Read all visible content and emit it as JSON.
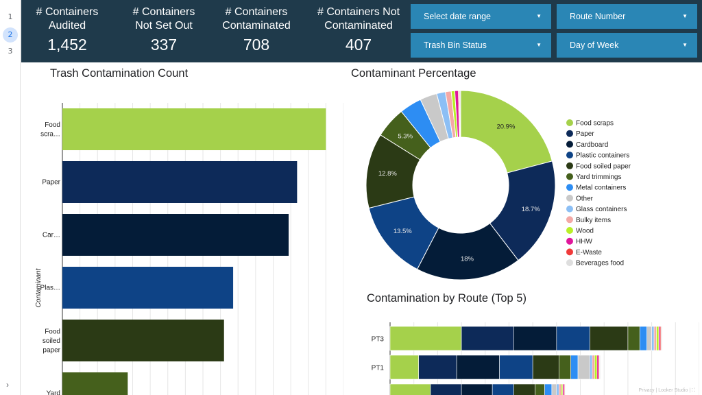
{
  "page_nav": {
    "pages": [
      "1",
      "2",
      "3"
    ],
    "active": "2",
    "expand_icon": "›"
  },
  "kpis": [
    {
      "label_line1": "# Containers",
      "label_line2": "Audited",
      "value": "1,452"
    },
    {
      "label_line1": "# Containers",
      "label_line2": "Not Set Out",
      "value": "337"
    },
    {
      "label_line1": "# Containers",
      "label_line2": "Contaminated",
      "value": "708"
    },
    {
      "label_line1": "# Containers Not",
      "label_line2": "Contaminated",
      "value": "407"
    }
  ],
  "filters": {
    "date_range": "Select date range",
    "route_number": "Route Number",
    "trash_bin_status": "Trash Bin Status",
    "day_of_week": "Day of Week"
  },
  "titles": {
    "bar": "Trash Contamination Count",
    "donut": "Contaminant Percentage",
    "route": "Contamination by Route (Top 5)"
  },
  "footer": "Privacy | Looker Studio | ⛶",
  "colors": {
    "Food scraps": "#a5d14b",
    "Paper": "#0d2a59",
    "Cardboard": "#041c38",
    "Plastic containers": "#0e4386",
    "Food soiled paper": "#2b3a15",
    "Yard trimmings": "#45601c",
    "Metal containers": "#2d8df3",
    "Other": "#c9c9c9",
    "Glass containers": "#8cbff5",
    "Bulky items": "#f4a9a6",
    "Wood": "#b9ef27",
    "HHW": "#e0169b",
    "E-Waste": "#f03a3a",
    "Beverages food": "#dedede"
  },
  "chart_data": [
    {
      "type": "bar",
      "orientation": "horizontal",
      "title": "Trash Contamination Count",
      "ylabel": "Contaminant",
      "categories": [
        "Food scraps",
        "Paper",
        "Cardboard",
        "Plastic containers",
        "Food soiled paper",
        "Yard trimmings"
      ],
      "tick_labels": [
        "Food scra…",
        "Paper",
        "Car…",
        "Plas…",
        "Food soiled paper",
        "Yard"
      ],
      "values": [
        375,
        334,
        322,
        243,
        230,
        93
      ],
      "xlim": [
        0,
        400
      ]
    },
    {
      "type": "pie",
      "title": "Contaminant Percentage",
      "donut": true,
      "labels": [
        "Food scraps",
        "Paper",
        "Cardboard",
        "Plastic containers",
        "Food soiled paper",
        "Yard trimmings",
        "Metal containers",
        "Other",
        "Glass containers",
        "Bulky items",
        "Wood",
        "HHW",
        "E-Waste",
        "Beverages food"
      ],
      "values": [
        20.9,
        18.7,
        18.0,
        13.5,
        12.8,
        5.3,
        3.8,
        2.9,
        1.5,
        1.0,
        0.6,
        0.6,
        0.2,
        0.2
      ],
      "data_labels": [
        "20.9%",
        "18.7%",
        "18%",
        "13.5%",
        "12.8%",
        "5.3%",
        "",
        "",
        "",
        "",
        "",
        "",
        "",
        ""
      ]
    },
    {
      "type": "bar",
      "stacked": true,
      "orientation": "horizontal",
      "title": "Contamination by Route (Top 5)",
      "categories": [
        "PT3",
        "PT1",
        ""
      ],
      "series": [
        {
          "name": "Food scraps",
          "values": [
            30,
            12,
            17
          ]
        },
        {
          "name": "Paper",
          "values": [
            22,
            16,
            13
          ]
        },
        {
          "name": "Cardboard",
          "values": [
            18,
            18,
            13
          ]
        },
        {
          "name": "Plastic containers",
          "values": [
            14,
            14,
            9
          ]
        },
        {
          "name": "Food soiled paper",
          "values": [
            16,
            11,
            9
          ]
        },
        {
          "name": "Yard trimmings",
          "values": [
            5,
            5,
            4
          ]
        },
        {
          "name": "Metal containers",
          "values": [
            3,
            3,
            3
          ]
        },
        {
          "name": "Other",
          "values": [
            2,
            5,
            2
          ]
        },
        {
          "name": "Glass containers",
          "values": [
            1,
            1,
            1
          ]
        },
        {
          "name": "Bulky items",
          "values": [
            1,
            1,
            1
          ]
        },
        {
          "name": "Wood",
          "values": [
            1,
            1,
            0.6
          ]
        },
        {
          "name": "HHW",
          "values": [
            0.6,
            0.6,
            0.6
          ]
        },
        {
          "name": "E-Waste",
          "values": [
            0.4,
            0.4,
            0.3
          ]
        },
        {
          "name": "Beverages food",
          "values": [
            0.4,
            0.4,
            0.2
          ]
        }
      ],
      "xlim": [
        0,
        130
      ]
    }
  ]
}
